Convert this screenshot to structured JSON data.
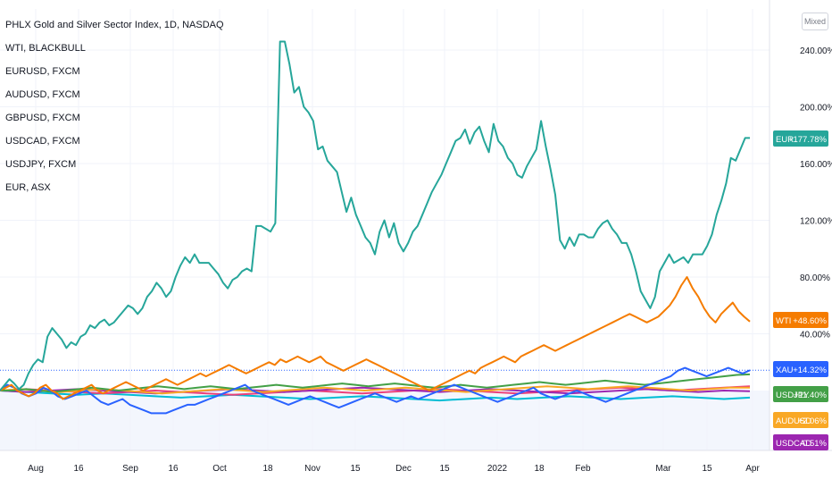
{
  "chart_data": {
    "type": "line",
    "title": "PHLX Gold and Silver Sector Index, 1D, NASDAQ",
    "legend_entries": [
      "WTI, BLACKBULL",
      "EURUSD, FXCM",
      "AUDUSD, FXCM",
      "GBPUSD, FXCM",
      "USDCAD, FXCM",
      "USDJPY, FXCM",
      "EUR, ASX"
    ],
    "scale_mode": "Mixed",
    "y_unit": "percent change",
    "y_ticks": [
      "240.00%",
      "200.00%",
      "160.00%",
      "120.00%",
      "80.00%",
      "40.00%"
    ],
    "x_ticks": [
      "Aug",
      "16",
      "Sep",
      "16",
      "Oct",
      "18",
      "Nov",
      "15",
      "Dec",
      "15",
      "2022",
      "18",
      "Feb",
      "Mar",
      "15",
      "Apr"
    ],
    "ylim": [
      -10,
      250
    ],
    "grid": true,
    "legend_placement": "top-left",
    "last_value_labels": [
      {
        "label": "EUR",
        "value": "+177.78%",
        "color": "#26a69a"
      },
      {
        "label": "WTI",
        "value": "+48.60%",
        "color": "#f57c00"
      },
      {
        "label": "XAU",
        "value": "+14.32%",
        "color": "#2962ff"
      },
      {
        "label": "USDJPY",
        "value": "+11.40%",
        "color": "#43a047"
      },
      {
        "label": "AUDUSD",
        "value": "+2.06%",
        "color": "#f9a825"
      },
      {
        "label": "USDCAD",
        "value": "-0.51%",
        "color": "#9c27b0"
      }
    ],
    "series": [
      {
        "name": "EUR",
        "color": "#26a69a",
        "values": [
          0,
          4,
          8,
          5,
          1,
          4,
          12,
          18,
          22,
          20,
          38,
          44,
          40,
          36,
          30,
          34,
          32,
          38,
          40,
          46,
          44,
          48,
          50,
          46,
          48,
          52,
          56,
          60,
          58,
          54,
          58,
          66,
          70,
          76,
          72,
          66,
          70,
          80,
          88,
          94,
          90,
          96,
          90,
          90,
          90,
          86,
          82,
          76,
          72,
          78,
          80,
          84,
          86,
          84,
          116,
          116,
          114,
          112,
          118,
          246,
          246,
          230,
          210,
          214,
          200,
          196,
          190,
          170,
          172,
          162,
          158,
          154,
          140,
          126,
          136,
          124,
          116,
          108,
          104,
          96,
          112,
          120,
          108,
          118,
          104,
          98,
          104,
          112,
          116,
          124,
          132,
          140,
          146,
          152,
          160,
          168,
          176,
          178,
          184,
          174,
          182,
          186,
          176,
          168,
          188,
          176,
          172,
          164,
          160,
          152,
          150,
          158,
          164,
          170,
          190,
          172,
          156,
          138,
          106,
          100,
          108,
          102,
          110,
          110,
          108,
          108,
          114,
          118,
          120,
          114,
          110,
          104,
          104,
          96,
          84,
          70,
          64,
          58,
          66,
          84,
          90,
          96,
          90,
          92,
          94,
          90,
          96,
          96,
          96,
          102,
          110,
          124,
          134,
          146,
          164,
          162,
          170,
          178,
          178
        ]
      },
      {
        "name": "WTI",
        "color": "#f57c00",
        "values": [
          0,
          2,
          4,
          0,
          -2,
          -4,
          -2,
          2,
          4,
          0,
          -2,
          -6,
          -4,
          -2,
          0,
          2,
          4,
          0,
          -2,
          0,
          2,
          4,
          6,
          4,
          2,
          0,
          2,
          4,
          6,
          8,
          6,
          4,
          6,
          8,
          10,
          12,
          10,
          12,
          14,
          16,
          18,
          16,
          14,
          12,
          14,
          16,
          18,
          20,
          18,
          22,
          20,
          22,
          24,
          22,
          20,
          22,
          24,
          20,
          18,
          16,
          14,
          16,
          18,
          20,
          22,
          20,
          18,
          16,
          14,
          12,
          10,
          8,
          6,
          4,
          2,
          0,
          2,
          4,
          6,
          8,
          10,
          12,
          14,
          12,
          16,
          18,
          20,
          22,
          24,
          22,
          20,
          24,
          26,
          28,
          30,
          32,
          30,
          28,
          30,
          32,
          34,
          36,
          38,
          40,
          42,
          44,
          46,
          48,
          50,
          52,
          54,
          52,
          50,
          48,
          50,
          52,
          56,
          60,
          66,
          74,
          80,
          72,
          66,
          58,
          52,
          48,
          54,
          58,
          62,
          56,
          52,
          48.6
        ]
      },
      {
        "name": "XAU",
        "color": "#2962ff",
        "values": [
          0,
          4,
          2,
          -2,
          -4,
          -2,
          2,
          0,
          -4,
          -6,
          -4,
          -2,
          0,
          -4,
          -8,
          -10,
          -8,
          -6,
          -10,
          -12,
          -14,
          -16,
          -16,
          -16,
          -14,
          -12,
          -10,
          -10,
          -8,
          -6,
          -4,
          -2,
          0,
          2,
          4,
          0,
          -2,
          -4,
          -6,
          -8,
          -10,
          -8,
          -6,
          -4,
          -6,
          -8,
          -10,
          -12,
          -10,
          -8,
          -6,
          -4,
          -2,
          -4,
          -6,
          -8,
          -6,
          -4,
          -6,
          -4,
          -2,
          0,
          2,
          4,
          2,
          0,
          -2,
          -4,
          -6,
          -8,
          -6,
          -4,
          -2,
          0,
          2,
          -2,
          -4,
          -6,
          -4,
          -2,
          0,
          -2,
          -4,
          -6,
          -8,
          -6,
          -4,
          -2,
          0,
          2,
          4,
          6,
          8,
          10,
          14,
          16,
          14,
          12,
          10,
          12,
          14,
          16,
          14,
          12,
          14.32
        ]
      },
      {
        "name": "USDJPY",
        "color": "#43a047",
        "values": [
          0,
          0,
          1,
          0,
          -1,
          0,
          1,
          2,
          1,
          0,
          1,
          2,
          3,
          2,
          1,
          2,
          3,
          2,
          1,
          2,
          3,
          4,
          3,
          2,
          3,
          4,
          5,
          4,
          3,
          4,
          5,
          4,
          3,
          2,
          3,
          4,
          3,
          2,
          3,
          4,
          5,
          6,
          5,
          4,
          5,
          6,
          7,
          6,
          5,
          4,
          5,
          6,
          7,
          8,
          9,
          10,
          11,
          11.4
        ]
      },
      {
        "name": "AUDUSD",
        "color": "#f9a825",
        "values": [
          0,
          1,
          0,
          -1,
          0,
          1,
          0,
          -1,
          -2,
          -1,
          0,
          1,
          0,
          -1,
          0,
          1,
          2,
          1,
          0,
          1,
          2,
          1,
          0,
          -1,
          0,
          1,
          2,
          3,
          2,
          1,
          2,
          3,
          2,
          1,
          0,
          1,
          2,
          2.06
        ]
      },
      {
        "name": "USDCAD",
        "color": "#9c27b0",
        "values": [
          0,
          -1,
          0,
          1,
          0,
          -1,
          -2,
          -1,
          0,
          1,
          0,
          -1,
          0,
          1,
          2,
          1,
          0,
          -1,
          0,
          1,
          0,
          -1,
          -2,
          -1,
          0,
          1,
          0,
          -1,
          0,
          -0.51
        ]
      },
      {
        "name": "EURUSD",
        "color": "#00bcd4",
        "values": [
          0,
          -1,
          -2,
          -3,
          -2,
          -3,
          -4,
          -5,
          -4,
          -3,
          -4,
          -5,
          -6,
          -5,
          -4,
          -5,
          -6,
          -7,
          -6,
          -5,
          -6,
          -5,
          -4,
          -5,
          -6,
          -5,
          -4,
          -5,
          -6,
          -5
        ]
      },
      {
        "name": "GBPUSD",
        "color": "#ec407a",
        "values": [
          0,
          1,
          0,
          -1,
          -2,
          -1,
          0,
          -1,
          -2,
          -3,
          -2,
          -1,
          0,
          -1,
          -2,
          -1,
          0,
          1,
          0,
          -1,
          -2,
          -1,
          0,
          1,
          2,
          1,
          0,
          1,
          2,
          3
        ]
      }
    ]
  }
}
